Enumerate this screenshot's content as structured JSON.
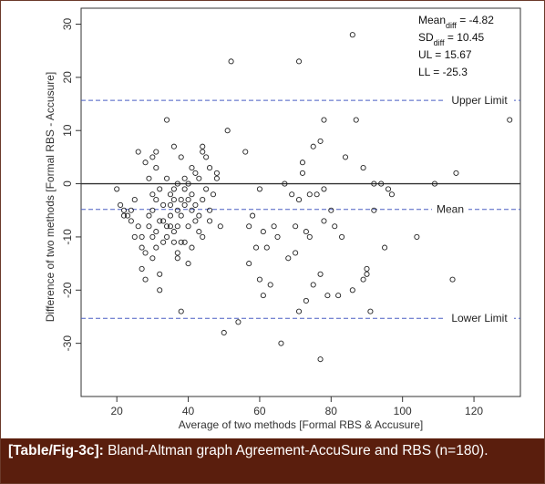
{
  "caption": {
    "label": "[Table/Fig-3c]:",
    "text": " Bland-Altman graph Agreement-AccuSure and RBS (n=180)."
  },
  "chart_data": {
    "type": "scatter",
    "title": "",
    "xlabel": "Average of two methods [Formal RBS & Accusure]",
    "ylabel": "Difference of two methods [Formal RBS - Accusure]",
    "xlim": [
      10,
      133
    ],
    "ylim": [
      -40,
      33
    ],
    "xticks": [
      "20",
      "40",
      "60",
      "80",
      "100",
      "120"
    ],
    "yticks": [
      "-30",
      "-20",
      "-10",
      "0",
      "10",
      "20",
      "30"
    ],
    "grid": false,
    "marker": "open-circle",
    "zero_line": 0,
    "reference_lines": [
      {
        "name": "Upper Limit",
        "value": 15.67
      },
      {
        "name": "Mean",
        "value": -4.82
      },
      {
        "name": "Lower Limit",
        "value": -25.3
      }
    ],
    "stats": {
      "mean_label": "Mean",
      "mean_sub": "diff",
      "mean_value": " = -4.82",
      "sd_label": "SD",
      "sd_sub": "diff",
      "sd_value": " = 10.45",
      "ul": "UL = 15.67",
      "ll": "LL = -25.3"
    },
    "points": [
      [
        20,
        -1
      ],
      [
        21,
        -4
      ],
      [
        22,
        -5
      ],
      [
        22,
        -6
      ],
      [
        23,
        -6
      ],
      [
        24,
        -7
      ],
      [
        24,
        -5
      ],
      [
        25,
        -10
      ],
      [
        25,
        -3
      ],
      [
        26,
        6
      ],
      [
        26,
        -8
      ],
      [
        27,
        -10
      ],
      [
        27,
        -12
      ],
      [
        27,
        -16
      ],
      [
        28,
        4
      ],
      [
        28,
        -18
      ],
      [
        28,
        -13
      ],
      [
        29,
        -6
      ],
      [
        29,
        1
      ],
      [
        29,
        -8
      ],
      [
        30,
        -10
      ],
      [
        30,
        -5
      ],
      [
        30,
        -2
      ],
      [
        30,
        5
      ],
      [
        30,
        -14
      ],
      [
        31,
        -3
      ],
      [
        31,
        3
      ],
      [
        31,
        6
      ],
      [
        31,
        -12
      ],
      [
        31,
        -9
      ],
      [
        32,
        -7
      ],
      [
        32,
        -1
      ],
      [
        32,
        -17
      ],
      [
        32,
        -20
      ],
      [
        33,
        -4
      ],
      [
        33,
        -7
      ],
      [
        33,
        -11
      ],
      [
        34,
        1
      ],
      [
        34,
        -8
      ],
      [
        34,
        -10
      ],
      [
        34,
        12
      ],
      [
        35,
        -2
      ],
      [
        35,
        -6
      ],
      [
        35,
        -8
      ],
      [
        35,
        -4
      ],
      [
        36,
        -1
      ],
      [
        36,
        7
      ],
      [
        36,
        -3
      ],
      [
        36,
        -11
      ],
      [
        36,
        -9
      ],
      [
        37,
        0
      ],
      [
        37,
        -5
      ],
      [
        37,
        -8
      ],
      [
        37,
        -14
      ],
      [
        37,
        -13
      ],
      [
        38,
        -3
      ],
      [
        38,
        -6
      ],
      [
        38,
        -11
      ],
      [
        38,
        5
      ],
      [
        38,
        -24
      ],
      [
        39,
        1
      ],
      [
        39,
        -1
      ],
      [
        39,
        -4
      ],
      [
        39,
        -11
      ],
      [
        40,
        0
      ],
      [
        40,
        -3
      ],
      [
        40,
        -8
      ],
      [
        40,
        -15
      ],
      [
        41,
        3
      ],
      [
        41,
        -2
      ],
      [
        41,
        -5
      ],
      [
        41,
        -12
      ],
      [
        42,
        2
      ],
      [
        42,
        -4
      ],
      [
        42,
        -7
      ],
      [
        43,
        1
      ],
      [
        43,
        -6
      ],
      [
        43,
        -9
      ],
      [
        44,
        7
      ],
      [
        44,
        6
      ],
      [
        44,
        -3
      ],
      [
        44,
        -10
      ],
      [
        45,
        5
      ],
      [
        45,
        -1
      ],
      [
        46,
        3
      ],
      [
        46,
        -5
      ],
      [
        46,
        -7
      ],
      [
        47,
        -2
      ],
      [
        48,
        1
      ],
      [
        48,
        2
      ],
      [
        49,
        -8
      ],
      [
        50,
        -28
      ],
      [
        51,
        10
      ],
      [
        52,
        23
      ],
      [
        54,
        -26
      ],
      [
        56,
        6
      ],
      [
        57,
        -15
      ],
      [
        57,
        -8
      ],
      [
        58,
        -6
      ],
      [
        59,
        -12
      ],
      [
        60,
        -1
      ],
      [
        60,
        -18
      ],
      [
        61,
        -21
      ],
      [
        61,
        -9
      ],
      [
        62,
        -12
      ],
      [
        63,
        -19
      ],
      [
        64,
        -8
      ],
      [
        65,
        -10
      ],
      [
        66,
        -30
      ],
      [
        67,
        0
      ],
      [
        68,
        -14
      ],
      [
        69,
        -2
      ],
      [
        70,
        -8
      ],
      [
        70,
        -13
      ],
      [
        71,
        23
      ],
      [
        71,
        -24
      ],
      [
        71,
        -3
      ],
      [
        72,
        2
      ],
      [
        72,
        4
      ],
      [
        73,
        -9
      ],
      [
        73,
        -22
      ],
      [
        74,
        -2
      ],
      [
        74,
        -10
      ],
      [
        75,
        -19
      ],
      [
        75,
        7
      ],
      [
        76,
        -2
      ],
      [
        77,
        -33
      ],
      [
        77,
        8
      ],
      [
        77,
        -17
      ],
      [
        78,
        12
      ],
      [
        78,
        -1
      ],
      [
        78,
        -7
      ],
      [
        79,
        -21
      ],
      [
        80,
        -5
      ],
      [
        81,
        -8
      ],
      [
        82,
        -21
      ],
      [
        83,
        -10
      ],
      [
        84,
        5
      ],
      [
        86,
        28
      ],
      [
        86,
        -20
      ],
      [
        87,
        12
      ],
      [
        89,
        3
      ],
      [
        89,
        -18
      ],
      [
        90,
        -17
      ],
      [
        90,
        -16
      ],
      [
        91,
        -24
      ],
      [
        92,
        -5
      ],
      [
        92,
        0
      ],
      [
        94,
        0
      ],
      [
        95,
        -12
      ],
      [
        96,
        -1
      ],
      [
        97,
        -2
      ],
      [
        104,
        -10
      ],
      [
        109,
        0
      ],
      [
        114,
        -18
      ],
      [
        115,
        2
      ],
      [
        130,
        12
      ]
    ]
  }
}
